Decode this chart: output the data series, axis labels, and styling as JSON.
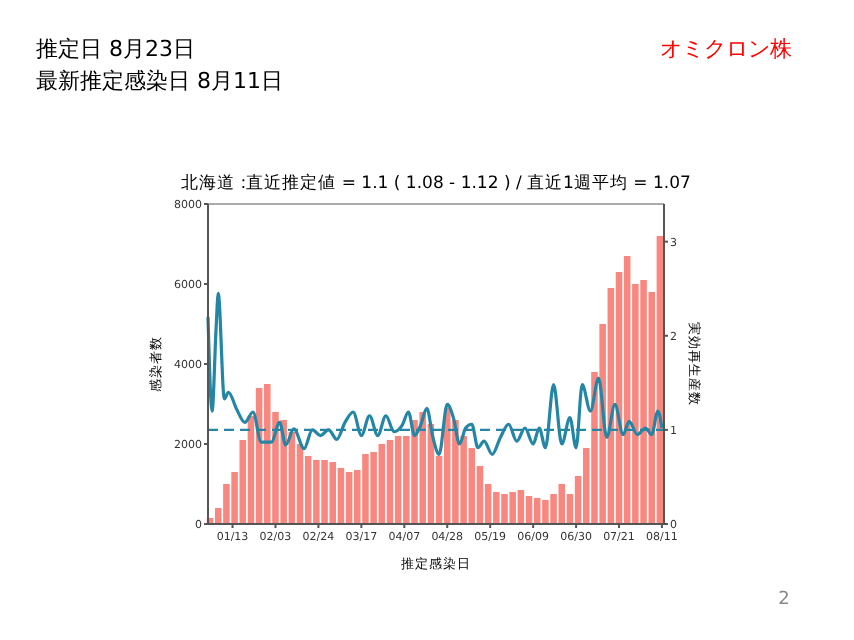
{
  "chart_data": {
    "type": "bar",
    "title": "北海道 :直近推定値 = 1.1 ( 1.08 - 1.12 ) / 直近1週平均 = 1.07",
    "xlabel": "推定感染日",
    "ylabel": "感染者数",
    "y2label": "実効再生産数",
    "annotations": [
      "推定日  8月23日",
      "最新推定感染日  8月11日",
      "オミクロン株",
      "2"
    ],
    "xlim": [
      "--01-01",
      "--08-12"
    ],
    "xticks": [
      {
        "value": "--01-13",
        "label": "01/13"
      },
      {
        "value": "--02-03",
        "label": "02/03"
      },
      {
        "value": "--02-24",
        "label": "02/24"
      },
      {
        "value": "--03-17",
        "label": "03/17"
      },
      {
        "value": "--04-07",
        "label": "04/07"
      },
      {
        "value": "--04-28",
        "label": "04/28"
      },
      {
        "value": "--05-19",
        "label": "05/19"
      },
      {
        "value": "--06-09",
        "label": "06/09"
      },
      {
        "value": "--06-30",
        "label": "06/30"
      },
      {
        "value": "--07-21",
        "label": "07/21"
      },
      {
        "value": "--08-11",
        "label": "08/11"
      }
    ],
    "ylim": [
      0,
      8000
    ],
    "yticks": [
      0,
      2000,
      4000,
      6000,
      8000
    ],
    "y2lim": [
      0,
      3.4
    ],
    "y2ticks": [
      0,
      1,
      2,
      3
    ],
    "grid": false,
    "series": [
      {
        "color": "#f8877f",
        "x": [
          "--01-02",
          "--01-06",
          "--01-10",
          "--01-14",
          "--01-18",
          "--01-22",
          "--01-26",
          "--01-30",
          "--02-03",
          "--02-07",
          "--02-11",
          "--02-15",
          "--02-19",
          "--02-23",
          "--02-27",
          "--03-03",
          "--03-07",
          "--03-11",
          "--03-15",
          "--03-19",
          "--03-23",
          "--03-27",
          "--03-31",
          "--04-04",
          "--04-08",
          "--04-12",
          "--04-16",
          "--04-20",
          "--04-24",
          "--04-28",
          "--05-02",
          "--05-06",
          "--05-10",
          "--05-14",
          "--05-18",
          "--05-22",
          "--05-26",
          "--05-30",
          "--06-03",
          "--06-07",
          "--06-11",
          "--06-15",
          "--06-19",
          "--06-23",
          "--06-27",
          "--07-01",
          "--07-05",
          "--07-09",
          "--07-13",
          "--07-17",
          "--07-21",
          "--07-25",
          "--07-29",
          "--08-02",
          "--08-06",
          "--08-10"
        ],
        "values": [
          150,
          400,
          1000,
          1300,
          2100,
          2700,
          3400,
          3500,
          2800,
          2600,
          2300,
          2000,
          1700,
          1600,
          1600,
          1550,
          1400,
          1300,
          1350,
          1750,
          1800,
          2000,
          2100,
          2200,
          2200,
          2600,
          2800,
          2500,
          1700,
          2900,
          2600,
          2200,
          1900,
          1450,
          1000,
          800,
          750,
          800,
          850,
          700,
          650,
          600,
          750,
          1000,
          750,
          1200,
          1900,
          3800,
          5000,
          5900,
          6300,
          6700,
          6000,
          6100,
          5800,
          7200
        ]
      },
      {
        "type": "line",
        "axis": "y2",
        "color": "#2585a5",
        "x": [
          "--01-01",
          "--01-03",
          "--01-05",
          "--01-06",
          "--01-09",
          "--01-11",
          "--01-15",
          "--01-19",
          "--01-23",
          "--01-27",
          "--02-01",
          "--02-05",
          "--02-08",
          "--02-12",
          "--02-17",
          "--02-21",
          "--02-25",
          "--03-01",
          "--03-05",
          "--03-09",
          "--03-13",
          "--03-17",
          "--03-21",
          "--03-25",
          "--03-29",
          "--04-02",
          "--04-06",
          "--04-09",
          "--04-12",
          "--04-15",
          "--04-18",
          "--04-21",
          "--04-24",
          "--04-28",
          "--05-01",
          "--05-04",
          "--05-07",
          "--05-10",
          "--05-13",
          "--05-16",
          "--05-20",
          "--05-24",
          "--05-28",
          "--06-01",
          "--06-05",
          "--06-09",
          "--06-12",
          "--06-15",
          "--06-19",
          "--06-23",
          "--06-27",
          "--06-30",
          "--07-03",
          "--07-07",
          "--07-11",
          "--07-15",
          "--07-19",
          "--07-23",
          "--07-26",
          "--07-30",
          "--08-03",
          "--08-06",
          "--08-09",
          "--08-11"
        ],
        "values": [
          2.2,
          1.2,
          2.1,
          2.45,
          1.33,
          1.4,
          1.22,
          1.08,
          1.19,
          0.87,
          0.87,
          1.08,
          0.84,
          1.01,
          0.8,
          1.0,
          0.94,
          1.0,
          0.9,
          1.08,
          1.19,
          0.94,
          1.15,
          0.94,
          1.15,
          0.98,
          1.05,
          1.19,
          0.94,
          1.05,
          1.23,
          0.92,
          0.74,
          1.27,
          1.13,
          0.85,
          1.02,
          1.06,
          0.81,
          0.88,
          0.74,
          0.92,
          1.06,
          0.88,
          1.02,
          0.85,
          1.02,
          0.81,
          1.48,
          0.85,
          1.13,
          0.81,
          1.48,
          1.2,
          1.55,
          0.92,
          1.27,
          0.95,
          1.09,
          0.95,
          1.02,
          0.95,
          1.2,
          1.02
        ]
      }
    ],
    "ref_lines": [
      {
        "axis": "y2",
        "value": 1,
        "color": "#2585a5",
        "line_style": "dashed"
      }
    ]
  }
}
